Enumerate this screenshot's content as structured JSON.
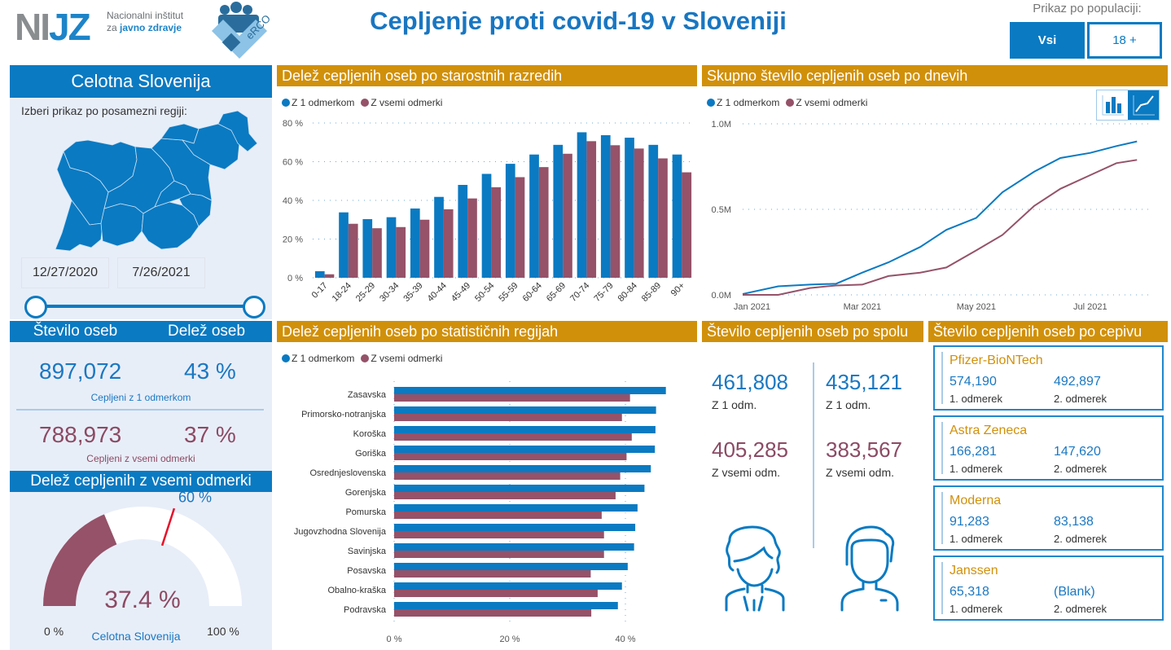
{
  "header": {
    "logo_main_part1": "NI",
    "logo_main_part2": "JZ",
    "logo_sub_line1": "Nacionalni inštitut",
    "logo_sub_line2_prefix": "za ",
    "logo_sub_line2_bold": "javno zdravje",
    "erco_label": "eRCO",
    "title": "Cepljenje proti covid-19 v Sloveniji",
    "population_label": "Prikaz po populaciji:",
    "population_options": [
      {
        "label": "Vsi",
        "selected": true
      },
      {
        "label": "18 +",
        "selected": false
      }
    ]
  },
  "left": {
    "region_title": "Celotna Slovenija",
    "select_label": "Izberi prikaz po posamezni regiji:",
    "date_start": "12/27/2020",
    "date_end": "7/26/2021",
    "stats_headers": [
      "Število oseb",
      "Delež oseb"
    ],
    "one_dose": {
      "count": "897,072",
      "share": "43 %",
      "label": "Cepljeni z 1 odmerkom"
    },
    "all_doses": {
      "count": "788,973",
      "share": "37 %",
      "label": "Cepljeni z vsemi odmerki"
    },
    "gauge": {
      "title": "Delež cepljenih z vsemi odmerki",
      "value": 37.4,
      "value_label": "37.4 %",
      "target": 60,
      "target_label": "60 %",
      "min_label": "0 %",
      "max_label": "100 %",
      "caption": "Celotna Slovenija"
    }
  },
  "colors": {
    "blue": "#0a7ac2",
    "maroon": "#955269",
    "orange": "#d1900a",
    "panel_bg": "#e8eef8",
    "target_line": "#e8102a"
  },
  "legend": {
    "one_dose": "Z 1 odmerkom",
    "all_doses": "Z vsemi odmerki"
  },
  "sections": {
    "age": "Delež cepljenih oseb po starostnih razredih",
    "daily": "Skupno število cepljenih oseb po dnevih",
    "regions": "Delež cepljenih oseb po statističnih regijah",
    "sex": "Število cepljenih oseb po spolu",
    "vaccine": "Število cepljenih oseb po cepivu"
  },
  "chart_data": [
    {
      "id": "age",
      "type": "bar",
      "title": "Delež cepljenih oseb po starostnih razredih",
      "categories": [
        "0-17",
        "18-24",
        "25-29",
        "30-34",
        "35-39",
        "40-44",
        "45-49",
        "50-54",
        "55-59",
        "60-64",
        "65-69",
        "70-74",
        "75-79",
        "80-84",
        "85-89",
        "90+"
      ],
      "series": [
        {
          "name": "Z 1 odmerkom",
          "values": [
            3.4,
            33.8,
            30.3,
            31.3,
            35.8,
            41.8,
            48.0,
            53.7,
            58.9,
            63.7,
            68.7,
            75.2,
            73.7,
            72.4,
            68.7,
            63.7
          ]
        },
        {
          "name": "Z vsemi odmerki",
          "values": [
            1.8,
            27.9,
            25.6,
            26.2,
            30.0,
            35.4,
            41.0,
            46.8,
            52.0,
            57.2,
            64.1,
            70.6,
            68.5,
            66.8,
            61.7,
            54.5
          ]
        }
      ],
      "yticks": [
        "0 %",
        "20 %",
        "40 %",
        "60 %",
        "80 %"
      ],
      "ylim": [
        0,
        80
      ],
      "xlabel": "",
      "ylabel": "",
      "grid": true,
      "legend": "top-left"
    },
    {
      "id": "daily",
      "type": "line",
      "title": "Skupno število cepljenih oseb po dnevih",
      "x": [
        "2020-12-27",
        "2021-01-15",
        "2021-02-01",
        "2021-02-15",
        "2021-03-01",
        "2021-03-15",
        "2021-04-01",
        "2021-04-15",
        "2021-05-01",
        "2021-05-15",
        "2021-06-01",
        "2021-06-15",
        "2021-07-01",
        "2021-07-15",
        "2021-07-26"
      ],
      "series": [
        {
          "name": "Z 1 odmerkom",
          "values": [
            5000,
            50000,
            60000,
            65000,
            130000,
            190000,
            280000,
            380000,
            450000,
            600000,
            720000,
            800000,
            830000,
            870000,
            897072
          ]
        },
        {
          "name": "Z vsemi odmerki",
          "values": [
            0,
            0,
            40000,
            55000,
            60000,
            110000,
            130000,
            160000,
            260000,
            350000,
            520000,
            620000,
            700000,
            770000,
            788973
          ]
        }
      ],
      "xticks": [
        "Jan 2021",
        "Mar 2021",
        "May 2021",
        "Jul 2021"
      ],
      "yticks": [
        "0.0M",
        "0.5M",
        "1.0M"
      ],
      "ylim": [
        0,
        1000000
      ],
      "grid": true,
      "legend": "top-left"
    },
    {
      "id": "regions",
      "type": "bar",
      "orientation": "horizontal",
      "title": "Delež cepljenih oseb po statističnih regijah",
      "categories": [
        "Zasavska",
        "Primorsko-notranjska",
        "Koroška",
        "Goriška",
        "Osrednjeslovenska",
        "Gorenjska",
        "Pomurska",
        "Jugovzhodna Slovenija",
        "Savinjska",
        "Posavska",
        "Obalno-kraška",
        "Podravska"
      ],
      "series": [
        {
          "name": "Z 1 odmerkom",
          "values": [
            47.0,
            45.3,
            45.2,
            45.1,
            44.4,
            43.3,
            42.1,
            41.7,
            41.5,
            40.4,
            39.4,
            38.7
          ]
        },
        {
          "name": "Z vsemi odmerki",
          "values": [
            40.8,
            39.4,
            41.1,
            40.2,
            39.1,
            38.3,
            35.9,
            36.3,
            36.3,
            34.0,
            35.2,
            34.1
          ]
        }
      ],
      "xticks": [
        "0 %",
        "20 %",
        "40 %"
      ],
      "xlim": [
        0,
        50
      ],
      "grid": true,
      "legend": "top-left"
    }
  ],
  "sex": {
    "female": {
      "one_dose": "461,808",
      "all_doses": "405,285"
    },
    "male": {
      "one_dose": "435,121",
      "all_doses": "383,567"
    },
    "one_label": "Z 1 odm.",
    "all_label": "Z vsemi odm."
  },
  "vaccines": [
    {
      "name": "Pfizer-BioNTech",
      "dose1": "574,190",
      "dose2": "492,897"
    },
    {
      "name": "Astra Zeneca",
      "dose1": "166,281",
      "dose2": "147,620"
    },
    {
      "name": "Moderna",
      "dose1": "91,283",
      "dose2": "83,138"
    },
    {
      "name": "Janssen",
      "dose1": "65,318",
      "dose2": "(Blank)"
    }
  ],
  "vaccine_dose_labels": {
    "first": "1. odmerek",
    "second": "2. odmerek"
  }
}
